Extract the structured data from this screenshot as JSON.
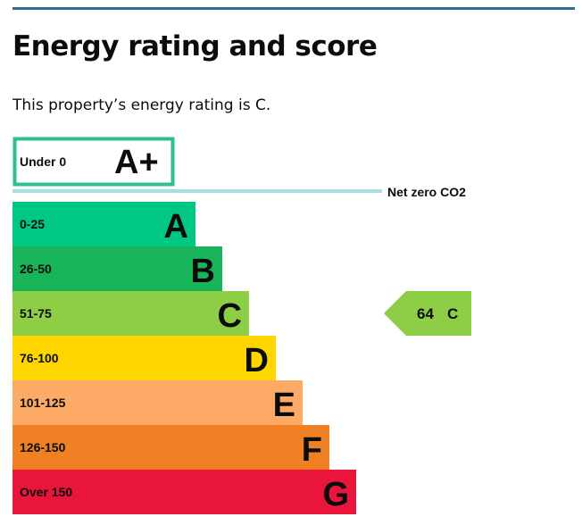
{
  "heading": "Energy rating and score",
  "rating_sentence": "This property’s energy rating is C.",
  "chart_data": {
    "type": "bar",
    "bands": [
      {
        "range": "Under 0",
        "letter": "A+",
        "color": "#2fbf8f",
        "style": "outline"
      },
      {
        "range": "0-25",
        "letter": "A",
        "color": "#00c781"
      },
      {
        "range": "26-50",
        "letter": "B",
        "color": "#19b459"
      },
      {
        "range": "51-75",
        "letter": "C",
        "color": "#8dce46"
      },
      {
        "range": "76-100",
        "letter": "D",
        "color": "#ffd500"
      },
      {
        "range": "101-125",
        "letter": "E",
        "color": "#fcaa65"
      },
      {
        "range": "126-150",
        "letter": "F",
        "color": "#ef8023"
      },
      {
        "range": "Over 150",
        "letter": "G",
        "color": "#e9153b"
      }
    ],
    "net_zero": {
      "label": "Net zero CO2",
      "color": "#a9dce3"
    },
    "current": {
      "score": 64,
      "letter": "C",
      "band": "51-75",
      "color": "#8dce46"
    }
  }
}
